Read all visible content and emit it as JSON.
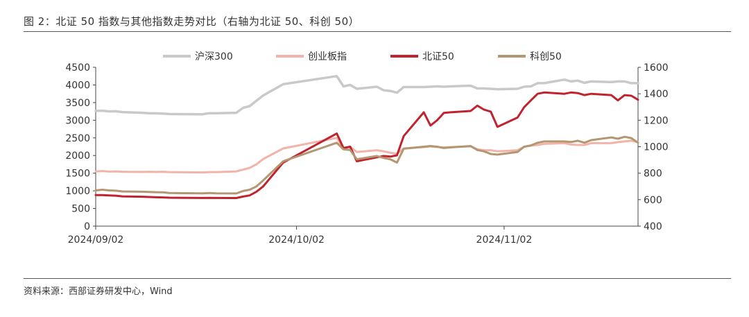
{
  "figure": {
    "title": "图 2：北证 50 指数与其他指数走势对比（右轴为北证 50、科创 50）",
    "source": "资料来源：西部证券研发中心，Wind"
  },
  "chart_data": {
    "type": "line",
    "legend_position": "top",
    "grid": false,
    "x_tick_labels": [
      "2024/09/02",
      "2024/10/02",
      "2024/11/02"
    ],
    "left_axis": {
      "ticks": [
        "0",
        "500",
        "1000",
        "1500",
        "2000",
        "2500",
        "3000",
        "3500",
        "4000",
        "4500"
      ],
      "ylim": [
        0,
        4500
      ]
    },
    "right_axis": {
      "ticks": [
        "400",
        "600",
        "800",
        "1000",
        "1200",
        "1400",
        "1600"
      ],
      "ylim": [
        400,
        1600
      ]
    },
    "colors": {
      "hs300": "#c9c9c9",
      "cyb": "#f2b3a8",
      "bz50": "#c0232e",
      "kc50": "#b39672"
    },
    "series": [
      {
        "name": "沪深300",
        "axis": "left",
        "points": [
          [
            "2024-09-02",
            3265
          ],
          [
            "2024-09-03",
            3270
          ],
          [
            "2024-09-04",
            3250
          ],
          [
            "2024-09-05",
            3255
          ],
          [
            "2024-09-06",
            3230
          ],
          [
            "2024-09-09",
            3210
          ],
          [
            "2024-09-10",
            3200
          ],
          [
            "2024-09-11",
            3195
          ],
          [
            "2024-09-12",
            3190
          ],
          [
            "2024-09-13",
            3175
          ],
          [
            "2024-09-18",
            3170
          ],
          [
            "2024-09-19",
            3200
          ],
          [
            "2024-09-20",
            3200
          ],
          [
            "2024-09-23",
            3210
          ],
          [
            "2024-09-24",
            3350
          ],
          [
            "2024-09-25",
            3400
          ],
          [
            "2024-09-26",
            3550
          ],
          [
            "2024-09-27",
            3700
          ],
          [
            "2024-09-30",
            4020
          ],
          [
            "2024-10-08",
            4250
          ],
          [
            "2024-10-09",
            3960
          ],
          [
            "2024-10-10",
            4000
          ],
          [
            "2024-10-11",
            3890
          ],
          [
            "2024-10-14",
            3950
          ],
          [
            "2024-10-15",
            3850
          ],
          [
            "2024-10-16",
            3830
          ],
          [
            "2024-10-17",
            3780
          ],
          [
            "2024-10-18",
            3940
          ],
          [
            "2024-10-21",
            3940
          ],
          [
            "2024-10-22",
            3950
          ],
          [
            "2024-10-23",
            3960
          ],
          [
            "2024-10-24",
            3950
          ],
          [
            "2024-10-25",
            3960
          ],
          [
            "2024-10-28",
            3980
          ],
          [
            "2024-10-29",
            3900
          ],
          [
            "2024-10-30",
            3900
          ],
          [
            "2024-10-31",
            3890
          ],
          [
            "2024-11-01",
            3880
          ],
          [
            "2024-11-04",
            3890
          ],
          [
            "2024-11-05",
            3950
          ],
          [
            "2024-11-06",
            3960
          ],
          [
            "2024-11-07",
            4050
          ],
          [
            "2024-11-08",
            4050
          ],
          [
            "2024-11-11",
            4150
          ],
          [
            "2024-11-12",
            4100
          ],
          [
            "2024-11-13",
            4120
          ],
          [
            "2024-11-14",
            4060
          ],
          [
            "2024-11-15",
            4100
          ],
          [
            "2024-11-18",
            4080
          ],
          [
            "2024-11-19",
            4100
          ],
          [
            "2024-11-20",
            4100
          ],
          [
            "2024-11-21",
            4050
          ],
          [
            "2024-11-22",
            4050
          ]
        ]
      },
      {
        "name": "创业板指",
        "axis": "left",
        "points": [
          [
            "2024-09-02",
            1550
          ],
          [
            "2024-09-03",
            1560
          ],
          [
            "2024-09-04",
            1545
          ],
          [
            "2024-09-05",
            1550
          ],
          [
            "2024-09-06",
            1540
          ],
          [
            "2024-09-09",
            1535
          ],
          [
            "2024-09-10",
            1540
          ],
          [
            "2024-09-11",
            1535
          ],
          [
            "2024-09-12",
            1540
          ],
          [
            "2024-09-13",
            1530
          ],
          [
            "2024-09-18",
            1520
          ],
          [
            "2024-09-19",
            1530
          ],
          [
            "2024-09-20",
            1530
          ],
          [
            "2024-09-23",
            1550
          ],
          [
            "2024-09-24",
            1600
          ],
          [
            "2024-09-25",
            1650
          ],
          [
            "2024-09-26",
            1750
          ],
          [
            "2024-09-27",
            1900
          ],
          [
            "2024-09-30",
            2200
          ],
          [
            "2024-10-08",
            2500
          ],
          [
            "2024-10-09",
            2200
          ],
          [
            "2024-10-10",
            2250
          ],
          [
            "2024-10-11",
            2100
          ],
          [
            "2024-10-14",
            2150
          ],
          [
            "2024-10-15",
            2120
          ],
          [
            "2024-10-16",
            2080
          ],
          [
            "2024-10-17",
            2050
          ],
          [
            "2024-10-18",
            2200
          ],
          [
            "2024-10-21",
            2240
          ],
          [
            "2024-10-22",
            2260
          ],
          [
            "2024-10-23",
            2240
          ],
          [
            "2024-10-24",
            2230
          ],
          [
            "2024-10-25",
            2240
          ],
          [
            "2024-10-28",
            2260
          ],
          [
            "2024-10-29",
            2180
          ],
          [
            "2024-10-30",
            2150
          ],
          [
            "2024-10-31",
            2150
          ],
          [
            "2024-11-01",
            2120
          ],
          [
            "2024-11-04",
            2150
          ],
          [
            "2024-11-05",
            2250
          ],
          [
            "2024-11-06",
            2280
          ],
          [
            "2024-11-07",
            2300
          ],
          [
            "2024-11-08",
            2330
          ],
          [
            "2024-11-11",
            2350
          ],
          [
            "2024-11-12",
            2310
          ],
          [
            "2024-11-13",
            2300
          ],
          [
            "2024-11-14",
            2300
          ],
          [
            "2024-11-15",
            2350
          ],
          [
            "2024-11-18",
            2350
          ],
          [
            "2024-11-19",
            2380
          ],
          [
            "2024-11-20",
            2400
          ],
          [
            "2024-11-21",
            2420
          ],
          [
            "2024-11-22",
            2380
          ]
        ]
      },
      {
        "name": "北证50",
        "axis": "right",
        "points": [
          [
            "2024-09-02",
            635
          ],
          [
            "2024-09-03",
            635
          ],
          [
            "2024-09-04",
            632
          ],
          [
            "2024-09-05",
            630
          ],
          [
            "2024-09-06",
            625
          ],
          [
            "2024-09-09",
            622
          ],
          [
            "2024-09-10",
            620
          ],
          [
            "2024-09-11",
            618
          ],
          [
            "2024-09-12",
            617
          ],
          [
            "2024-09-13",
            615
          ],
          [
            "2024-09-18",
            613
          ],
          [
            "2024-09-19",
            614
          ],
          [
            "2024-09-20",
            613
          ],
          [
            "2024-09-23",
            612
          ],
          [
            "2024-09-24",
            623
          ],
          [
            "2024-09-25",
            632
          ],
          [
            "2024-09-26",
            660
          ],
          [
            "2024-09-27",
            700
          ],
          [
            "2024-09-30",
            880
          ],
          [
            "2024-10-08",
            1100
          ],
          [
            "2024-10-09",
            990
          ],
          [
            "2024-10-10",
            1000
          ],
          [
            "2024-10-11",
            890
          ],
          [
            "2024-10-14",
            920
          ],
          [
            "2024-10-15",
            930
          ],
          [
            "2024-10-16",
            925
          ],
          [
            "2024-10-17",
            935
          ],
          [
            "2024-10-18",
            1080
          ],
          [
            "2024-10-21",
            1260
          ],
          [
            "2024-10-22",
            1160
          ],
          [
            "2024-10-23",
            1200
          ],
          [
            "2024-10-24",
            1255
          ],
          [
            "2024-10-25",
            1260
          ],
          [
            "2024-10-28",
            1270
          ],
          [
            "2024-10-29",
            1310
          ],
          [
            "2024-10-30",
            1280
          ],
          [
            "2024-10-31",
            1265
          ],
          [
            "2024-11-01",
            1150
          ],
          [
            "2024-11-04",
            1220
          ],
          [
            "2024-11-05",
            1300
          ],
          [
            "2024-11-06",
            1350
          ],
          [
            "2024-11-07",
            1400
          ],
          [
            "2024-11-08",
            1410
          ],
          [
            "2024-11-11",
            1400
          ],
          [
            "2024-11-12",
            1410
          ],
          [
            "2024-11-13",
            1405
          ],
          [
            "2024-11-14",
            1390
          ],
          [
            "2024-11-15",
            1400
          ],
          [
            "2024-11-18",
            1390
          ],
          [
            "2024-11-19",
            1350
          ],
          [
            "2024-11-20",
            1390
          ],
          [
            "2024-11-21",
            1385
          ],
          [
            "2024-11-22",
            1355
          ]
        ]
      },
      {
        "name": "科创50",
        "axis": "right",
        "points": [
          [
            "2024-09-02",
            670
          ],
          [
            "2024-09-03",
            675
          ],
          [
            "2024-09-04",
            670
          ],
          [
            "2024-09-05",
            668
          ],
          [
            "2024-09-06",
            662
          ],
          [
            "2024-09-09",
            660
          ],
          [
            "2024-09-10",
            658
          ],
          [
            "2024-09-11",
            656
          ],
          [
            "2024-09-12",
            655
          ],
          [
            "2024-09-13",
            650
          ],
          [
            "2024-09-18",
            648
          ],
          [
            "2024-09-19",
            650
          ],
          [
            "2024-09-20",
            648
          ],
          [
            "2024-09-23",
            647
          ],
          [
            "2024-09-24",
            665
          ],
          [
            "2024-09-25",
            675
          ],
          [
            "2024-09-26",
            700
          ],
          [
            "2024-09-27",
            745
          ],
          [
            "2024-09-30",
            890
          ],
          [
            "2024-10-08",
            1030
          ],
          [
            "2024-10-09",
            980
          ],
          [
            "2024-10-10",
            975
          ],
          [
            "2024-10-11",
            905
          ],
          [
            "2024-10-14",
            930
          ],
          [
            "2024-10-15",
            915
          ],
          [
            "2024-10-16",
            905
          ],
          [
            "2024-10-17",
            880
          ],
          [
            "2024-10-18",
            985
          ],
          [
            "2024-10-21",
            1000
          ],
          [
            "2024-10-22",
            1005
          ],
          [
            "2024-10-23",
            1000
          ],
          [
            "2024-10-24",
            990
          ],
          [
            "2024-10-25",
            995
          ],
          [
            "2024-10-28",
            1005
          ],
          [
            "2024-10-29",
            975
          ],
          [
            "2024-10-30",
            965
          ],
          [
            "2024-10-31",
            945
          ],
          [
            "2024-11-01",
            940
          ],
          [
            "2024-11-04",
            960
          ],
          [
            "2024-11-05",
            1000
          ],
          [
            "2024-11-06",
            1010
          ],
          [
            "2024-11-07",
            1030
          ],
          [
            "2024-11-08",
            1040
          ],
          [
            "2024-11-11",
            1040
          ],
          [
            "2024-11-12",
            1035
          ],
          [
            "2024-11-13",
            1045
          ],
          [
            "2024-11-14",
            1030
          ],
          [
            "2024-11-15",
            1050
          ],
          [
            "2024-11-18",
            1070
          ],
          [
            "2024-11-19",
            1060
          ],
          [
            "2024-11-20",
            1075
          ],
          [
            "2024-11-21",
            1065
          ],
          [
            "2024-11-22",
            1030
          ]
        ]
      }
    ]
  }
}
